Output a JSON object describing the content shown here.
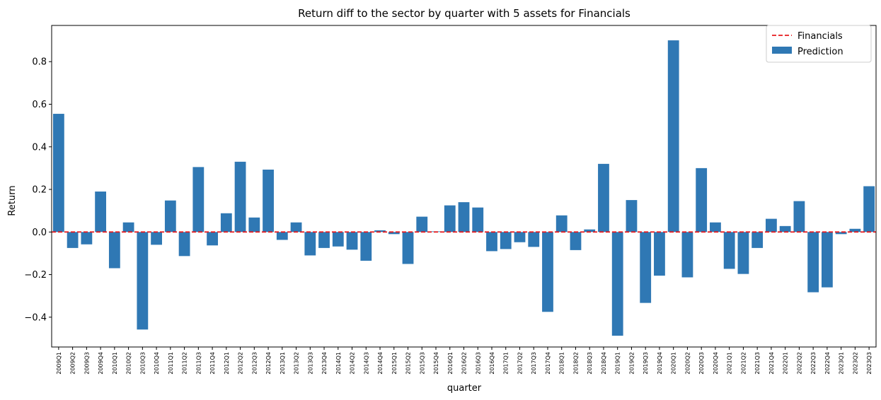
{
  "chart_data": {
    "type": "bar",
    "title": "Return diff to the sector by quarter with 5 assets for Financials",
    "xlabel": "quarter",
    "ylabel": "Return",
    "ylim": [
      -0.54,
      0.97
    ],
    "yticks": [
      -0.4,
      -0.2,
      0.0,
      0.2,
      0.4,
      0.6,
      0.8
    ],
    "ytick_labels": [
      "−0.4",
      "−0.2",
      "0.0",
      "0.2",
      "0.4",
      "0.6",
      "0.8"
    ],
    "legend_position": "top-right",
    "categories": [
      "2009Q1",
      "2009Q2",
      "2009Q3",
      "2009Q4",
      "2010Q1",
      "2010Q2",
      "2010Q3",
      "2010Q4",
      "2011Q1",
      "2011Q2",
      "2011Q3",
      "2011Q4",
      "2012Q1",
      "2012Q2",
      "2012Q3",
      "2012Q4",
      "2013Q1",
      "2013Q2",
      "2013Q3",
      "2013Q4",
      "2014Q1",
      "2014Q2",
      "2014Q3",
      "2014Q4",
      "2015Q1",
      "2015Q2",
      "2015Q3",
      "2015Q4",
      "2016Q1",
      "2016Q2",
      "2016Q3",
      "2016Q4",
      "2017Q1",
      "2017Q2",
      "2017Q3",
      "2017Q4",
      "2018Q1",
      "2018Q2",
      "2018Q3",
      "2018Q4",
      "2019Q1",
      "2019Q2",
      "2019Q3",
      "2019Q4",
      "2020Q1",
      "2020Q2",
      "2020Q3",
      "2020Q4",
      "2021Q1",
      "2021Q2",
      "2021Q3",
      "2021Q4",
      "2022Q1",
      "2022Q2",
      "2022Q3",
      "2022Q4",
      "2023Q1",
      "2023Q2",
      "2023Q3"
    ],
    "series": [
      {
        "name": "Prediction",
        "color": "#2f78b4",
        "values": [
          0.555,
          -0.075,
          -0.058,
          0.19,
          -0.17,
          0.045,
          -0.458,
          -0.06,
          0.148,
          -0.113,
          0.305,
          -0.063,
          0.088,
          0.33,
          0.068,
          0.293,
          -0.037,
          0.045,
          -0.11,
          -0.075,
          -0.068,
          -0.083,
          -0.135,
          0.008,
          -0.01,
          -0.15,
          0.072,
          0.003,
          0.125,
          0.14,
          0.115,
          -0.09,
          -0.08,
          -0.048,
          -0.07,
          -0.375,
          0.078,
          -0.085,
          0.012,
          0.32,
          -0.487,
          0.15,
          -0.333,
          -0.205,
          0.9,
          -0.213,
          0.3,
          0.045,
          -0.173,
          -0.197,
          -0.075,
          0.062,
          0.028,
          0.145,
          -0.283,
          -0.26,
          -0.01,
          0.015,
          0.215
        ]
      }
    ],
    "reference_line": {
      "name": "Financials",
      "value": 0.0,
      "color": "#e8191c",
      "style": "dashed"
    }
  }
}
